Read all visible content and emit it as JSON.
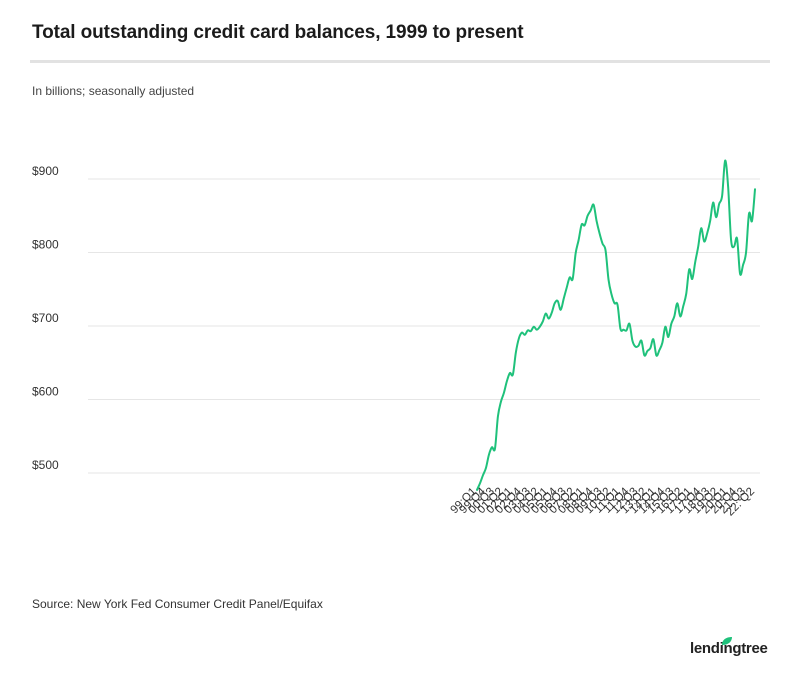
{
  "header": {
    "title": "Total outstanding credit card balances, 1999 to present",
    "subtitle": "In billions; seasonally adjusted"
  },
  "footer": {
    "source": "Source: New York Fed Consumer Credit Panel/Equifax",
    "logo_text": "lendingtree"
  },
  "colors": {
    "line": "#1fc17b",
    "grid": "#e6e6e6",
    "accent_leaf": "#1fc17b"
  },
  "chart_data": {
    "type": "line",
    "title": "Total outstanding credit card balances, 1999 to present",
    "ylabel": "In billions; seasonally adjusted",
    "xlabel": "",
    "ylim": [
      470,
      935
    ],
    "y_ticks": [
      500,
      600,
      700,
      800,
      900
    ],
    "y_tick_labels": [
      "$500",
      "$600",
      "$700",
      "$800",
      "$900"
    ],
    "x_tick_labels": [
      "99:Q1",
      "99:Q4",
      "00:Q3",
      "01:Q2",
      "02:Q1",
      "02:Q4",
      "03:Q3",
      "04:Q2",
      "05:Q1",
      "05:Q4",
      "06:Q3",
      "07:Q2",
      "08:Q1",
      "08:Q4",
      "09:Q3",
      "10:Q2",
      "11:Q1",
      "11:Q4",
      "12:Q3",
      "13:Q2",
      "14:Q1",
      "14:Q4",
      "15:Q3",
      "16:Q2",
      "17:Q1",
      "17:Q4",
      "18:Q3",
      "19:Q2",
      "20:Q1",
      "20:Q4",
      "21:Q3",
      "22: Q2"
    ],
    "x": [
      "99:Q1",
      "99:Q2",
      "99:Q3",
      "99:Q4",
      "00:Q1",
      "00:Q2",
      "00:Q3",
      "00:Q4",
      "01:Q1",
      "01:Q2",
      "01:Q3",
      "01:Q4",
      "02:Q1",
      "02:Q2",
      "02:Q3",
      "02:Q4",
      "03:Q1",
      "03:Q2",
      "03:Q3",
      "03:Q4",
      "04:Q1",
      "04:Q2",
      "04:Q3",
      "04:Q4",
      "05:Q1",
      "05:Q2",
      "05:Q3",
      "05:Q4",
      "06:Q1",
      "06:Q2",
      "06:Q3",
      "06:Q4",
      "07:Q1",
      "07:Q2",
      "07:Q3",
      "07:Q4",
      "08:Q1",
      "08:Q2",
      "08:Q3",
      "08:Q4",
      "09:Q1",
      "09:Q2",
      "09:Q3",
      "09:Q4",
      "10:Q1",
      "10:Q2",
      "10:Q3",
      "10:Q4",
      "11:Q1",
      "11:Q2",
      "11:Q3",
      "11:Q4",
      "12:Q1",
      "12:Q2",
      "12:Q3",
      "12:Q4",
      "13:Q1",
      "13:Q2",
      "13:Q3",
      "13:Q4",
      "14:Q1",
      "14:Q2",
      "14:Q3",
      "14:Q4",
      "15:Q1",
      "15:Q2",
      "15:Q3",
      "15:Q4",
      "16:Q1",
      "16:Q2",
      "16:Q3",
      "16:Q4",
      "17:Q1",
      "17:Q2",
      "17:Q3",
      "17:Q4",
      "18:Q1",
      "18:Q2",
      "18:Q3",
      "18:Q4",
      "19:Q1",
      "19:Q2",
      "19:Q3",
      "19:Q4",
      "20:Q1",
      "20:Q2",
      "20:Q3",
      "20:Q4",
      "21:Q1",
      "21:Q2",
      "21:Q3",
      "21:Q4",
      "22:Q1",
      "22:Q2"
    ],
    "series": [
      {
        "values": [
          477,
          486,
          497,
          507,
          525,
          535,
          533,
          577,
          597,
          609,
          625,
          636,
          634,
          664,
          683,
          691,
          688,
          694,
          693,
          699,
          695,
          699,
          706,
          717,
          710,
          718,
          731,
          734,
          722,
          737,
          752,
          766,
          764,
          799,
          817,
          838,
          837,
          850,
          857,
          865,
          843,
          826,
          812,
          803,
          763,
          743,
          731,
          729,
          696,
          695,
          694,
          703,
          680,
          672,
          673,
          680,
          660,
          666,
          670,
          682,
          660,
          667,
          677,
          699,
          685,
          703,
          713,
          731,
          713,
          727,
          744,
          777,
          764,
          787,
          808,
          833,
          815,
          826,
          843,
          868,
          848,
          866,
          877,
          925,
          890,
          817,
          808,
          819,
          771,
          783,
          800,
          853,
          843,
          886
        ]
      }
    ],
    "grid": "horizontal",
    "legend": "none"
  }
}
